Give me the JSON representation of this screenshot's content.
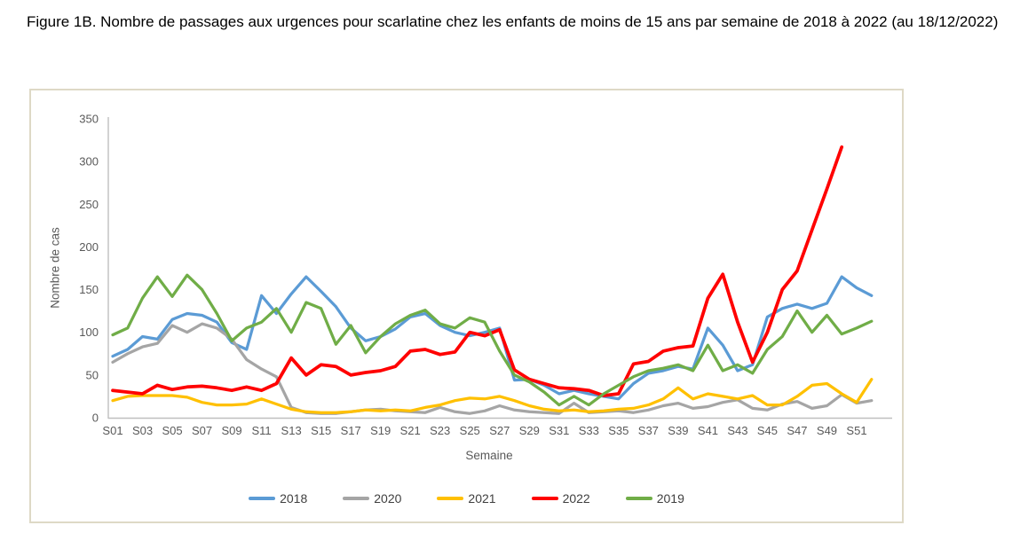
{
  "figure": {
    "title": "Figure 1B. Nombre de passages aux urgences pour scarlatine chez les enfants de moins de 15 ans par semaine de 2018 à 2022 (au 18/12/2022)"
  },
  "colors": {
    "axis_line": "#bfbfbf",
    "axis_text": "#595959",
    "panel_border": "#ded9c6",
    "background": "#ffffff"
  },
  "chart_data": {
    "type": "line",
    "title": "",
    "xlabel": "Semaine",
    "ylabel": "Nombre de cas",
    "ylim": [
      0,
      350
    ],
    "ytick_step": 50,
    "grid": false,
    "legend_position": "bottom",
    "y_tick_labels": [
      "0",
      "50",
      "100",
      "150",
      "200",
      "250",
      "300",
      "350"
    ],
    "x_tick_labels": [
      "S01",
      "S03",
      "S05",
      "S07",
      "S09",
      "S11",
      "S13",
      "S15",
      "S17",
      "S19",
      "S21",
      "S23",
      "S25",
      "S27",
      "S29",
      "S31",
      "S33",
      "S35",
      "S37",
      "S39",
      "S41",
      "S43",
      "S45",
      "S47",
      "S49",
      "S51"
    ],
    "categories": [
      "S01",
      "S02",
      "S03",
      "S04",
      "S05",
      "S06",
      "S07",
      "S08",
      "S09",
      "S10",
      "S11",
      "S12",
      "S13",
      "S14",
      "S15",
      "S16",
      "S17",
      "S18",
      "S19",
      "S20",
      "S21",
      "S22",
      "S23",
      "S24",
      "S25",
      "S26",
      "S27",
      "S28",
      "S29",
      "S30",
      "S31",
      "S32",
      "S33",
      "S34",
      "S35",
      "S36",
      "S37",
      "S38",
      "S39",
      "S40",
      "S41",
      "S42",
      "S43",
      "S44",
      "S45",
      "S46",
      "S47",
      "S48",
      "S49",
      "S50",
      "S51",
      "S52"
    ],
    "series": [
      {
        "name": "2018",
        "color": "#5b9bd5",
        "values": [
          72,
          80,
          95,
          92,
          115,
          122,
          120,
          112,
          88,
          80,
          143,
          122,
          145,
          165,
          148,
          130,
          105,
          90,
          95,
          104,
          118,
          122,
          108,
          100,
          96,
          100,
          105,
          44,
          45,
          38,
          28,
          32,
          28,
          25,
          22,
          40,
          52,
          55,
          60,
          57,
          105,
          85,
          55,
          62,
          118,
          128,
          133,
          128,
          134,
          165,
          152,
          143
        ]
      },
      {
        "name": "2020",
        "color": "#a5a5a5",
        "values": [
          65,
          75,
          83,
          87,
          108,
          100,
          110,
          105,
          92,
          68,
          57,
          48,
          12,
          6,
          5,
          5,
          7,
          9,
          10,
          8,
          7,
          6,
          12,
          7,
          5,
          8,
          14,
          9,
          7,
          6,
          5,
          17,
          6,
          7,
          8,
          6,
          9,
          14,
          17,
          11,
          13,
          18,
          21,
          11,
          9,
          16,
          19,
          11,
          14,
          27,
          17,
          20
        ]
      },
      {
        "name": "2021",
        "color": "#ffc000",
        "values": [
          20,
          25,
          26,
          26,
          26,
          24,
          18,
          15,
          15,
          16,
          22,
          16,
          10,
          7,
          6,
          6,
          7,
          9,
          8,
          9,
          8,
          12,
          15,
          20,
          23,
          22,
          25,
          20,
          14,
          10,
          8,
          9,
          7,
          8,
          10,
          11,
          15,
          22,
          35,
          22,
          28,
          25,
          22,
          26,
          15,
          15,
          25,
          38,
          40,
          28,
          18,
          45
        ]
      },
      {
        "name": "2022",
        "color": "#ff0000",
        "values": [
          32,
          30,
          28,
          38,
          33,
          36,
          37,
          35,
          32,
          36,
          32,
          40,
          70,
          50,
          62,
          60,
          50,
          53,
          55,
          60,
          78,
          80,
          74,
          77,
          100,
          96,
          103,
          56,
          45,
          40,
          35,
          34,
          32,
          26,
          28,
          63,
          66,
          78,
          82,
          84,
          140,
          168,
          112,
          65,
          100,
          150,
          172,
          220,
          268,
          317
        ]
      },
      {
        "name": "2019",
        "color": "#70ad47",
        "values": [
          97,
          105,
          140,
          165,
          142,
          167,
          150,
          122,
          90,
          105,
          112,
          128,
          100,
          135,
          128,
          86,
          108,
          76,
          95,
          110,
          120,
          126,
          110,
          105,
          117,
          112,
          78,
          50,
          42,
          30,
          15,
          25,
          15,
          28,
          38,
          48,
          55,
          58,
          62,
          55,
          85,
          55,
          62,
          52,
          80,
          95,
          125,
          100,
          120,
          98,
          105,
          113
        ]
      }
    ]
  }
}
